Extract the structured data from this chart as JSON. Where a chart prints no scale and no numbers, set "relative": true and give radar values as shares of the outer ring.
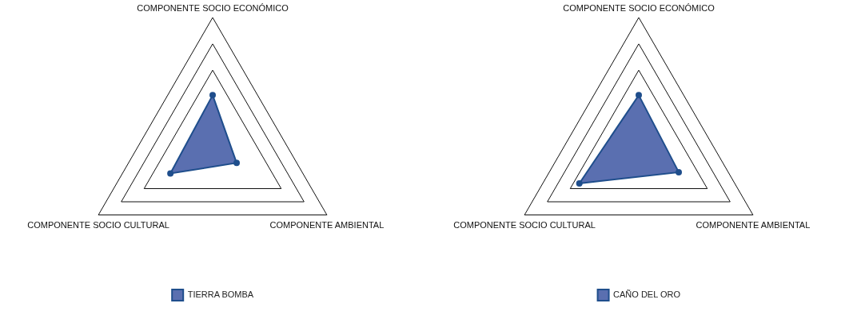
{
  "chart_data": [
    {
      "type": "radar",
      "categories": [
        "COMPONENTE SOCIO ECONÓMICO",
        "COMPONENTE AMBIENTAL",
        "COMPONENTE SOCIO CULTURAL"
      ],
      "relative": true,
      "legend": "bottom",
      "series": [
        {
          "name": "TIERRA BOMBA",
          "color": "#5a6fb0",
          "values": [
            0.41,
            0.21,
            0.37
          ]
        }
      ]
    },
    {
      "type": "radar",
      "categories": [
        "COMPONENTE SOCIO ECONÓMICO",
        "COMPONENTE AMBIENTAL",
        "COMPONENTE SOCIO CULTURAL"
      ],
      "relative": true,
      "legend": "bottom",
      "series": [
        {
          "name": "CAÑO DEL ORO",
          "color": "#5a6fb0",
          "values": [
            0.41,
            0.35,
            0.52
          ]
        }
      ]
    }
  ]
}
